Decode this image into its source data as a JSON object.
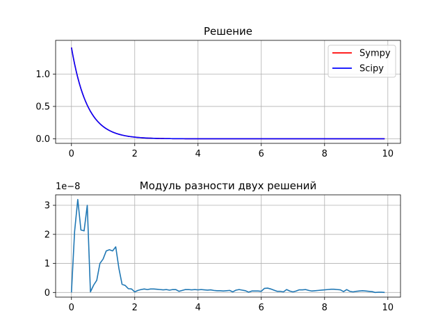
{
  "chart_data": [
    {
      "type": "line",
      "title": "Решение",
      "xlim": [
        -0.5,
        10.4
      ],
      "ylim": [
        -0.07,
        1.52
      ],
      "x_ticks": [
        0,
        2,
        4,
        6,
        8,
        10
      ],
      "x_tick_labels": [
        "0",
        "2",
        "4",
        "6",
        "8",
        "10"
      ],
      "y_ticks": [
        0.0,
        0.5,
        1.0
      ],
      "y_tick_labels": [
        "0.0",
        "0.5",
        "1.0"
      ],
      "grid": true,
      "legend": "top-right",
      "function_form": "y = 1.41 * exp(-2 x)",
      "x_range": [
        0,
        9.9
      ],
      "series": [
        {
          "name": "Sympy",
          "color": "#ff0000"
        },
        {
          "name": "Scipy",
          "color": "#0000ff"
        }
      ]
    },
    {
      "type": "line",
      "title": "Модуль разности двух решений",
      "offset_label": "1e−8",
      "xlim": [
        -0.5,
        10.4
      ],
      "ylim": [
        -0.16,
        3.36
      ],
      "x_ticks": [
        0,
        2,
        4,
        6,
        8,
        10
      ],
      "x_tick_labels": [
        "0",
        "2",
        "4",
        "6",
        "8",
        "10"
      ],
      "y_ticks": [
        0,
        1,
        2,
        3
      ],
      "y_tick_labels": [
        "0",
        "1",
        "2",
        "3"
      ],
      "grid": true,
      "series": [
        {
          "color": "#1f77b4",
          "x": [
            0.0,
            0.1,
            0.2,
            0.3,
            0.4,
            0.5,
            0.6,
            0.7,
            0.8,
            0.9,
            1.0,
            1.1,
            1.2,
            1.3,
            1.4,
            1.5,
            1.6,
            1.7,
            1.8,
            1.9,
            2.0,
            2.1,
            2.2,
            2.3,
            2.4,
            2.5,
            2.6,
            2.7,
            2.8,
            2.9,
            3.0,
            3.1,
            3.2,
            3.3,
            3.4,
            3.5,
            3.6,
            3.7,
            3.8,
            3.9,
            4.0,
            4.1,
            4.2,
            4.3,
            4.4,
            4.5,
            4.6,
            4.7,
            4.8,
            4.9,
            5.0,
            5.1,
            5.2,
            5.3,
            5.4,
            5.5,
            5.6,
            5.7,
            5.8,
            5.9,
            6.0,
            6.1,
            6.2,
            6.3,
            6.4,
            6.5,
            6.6,
            6.7,
            6.8,
            6.9,
            7.0,
            7.1,
            7.2,
            7.3,
            7.4,
            7.5,
            7.6,
            7.7,
            7.8,
            7.9,
            8.0,
            8.1,
            8.2,
            8.3,
            8.4,
            8.5,
            8.6,
            8.7,
            8.8,
            8.9,
            9.0,
            9.1,
            9.2,
            9.3,
            9.4,
            9.5,
            9.6,
            9.7,
            9.8,
            9.9
          ],
          "y": [
            0.0,
            2.1,
            3.2,
            2.15,
            2.12,
            3.0,
            0.02,
            0.25,
            0.42,
            1.0,
            1.15,
            1.43,
            1.47,
            1.43,
            1.57,
            0.83,
            0.28,
            0.24,
            0.13,
            0.12,
            0.02,
            0.07,
            0.1,
            0.12,
            0.1,
            0.12,
            0.12,
            0.11,
            0.1,
            0.09,
            0.1,
            0.08,
            0.1,
            0.1,
            0.04,
            0.07,
            0.1,
            0.1,
            0.09,
            0.1,
            0.09,
            0.1,
            0.09,
            0.08,
            0.09,
            0.07,
            0.06,
            0.06,
            0.05,
            0.06,
            0.07,
            0.02,
            0.08,
            0.1,
            0.08,
            0.06,
            0.01,
            0.05,
            0.05,
            0.05,
            0.04,
            0.14,
            0.15,
            0.12,
            0.08,
            0.04,
            0.04,
            0.02,
            0.1,
            0.05,
            0.02,
            0.05,
            0.09,
            0.09,
            0.1,
            0.07,
            0.05,
            0.06,
            0.07,
            0.08,
            0.09,
            0.1,
            0.11,
            0.11,
            0.1,
            0.09,
            0.03,
            0.1,
            0.04,
            0.02,
            0.04,
            0.05,
            0.06,
            0.05,
            0.04,
            0.03,
            0.0,
            0.01,
            0.01,
            0.0
          ]
        }
      ]
    }
  ]
}
